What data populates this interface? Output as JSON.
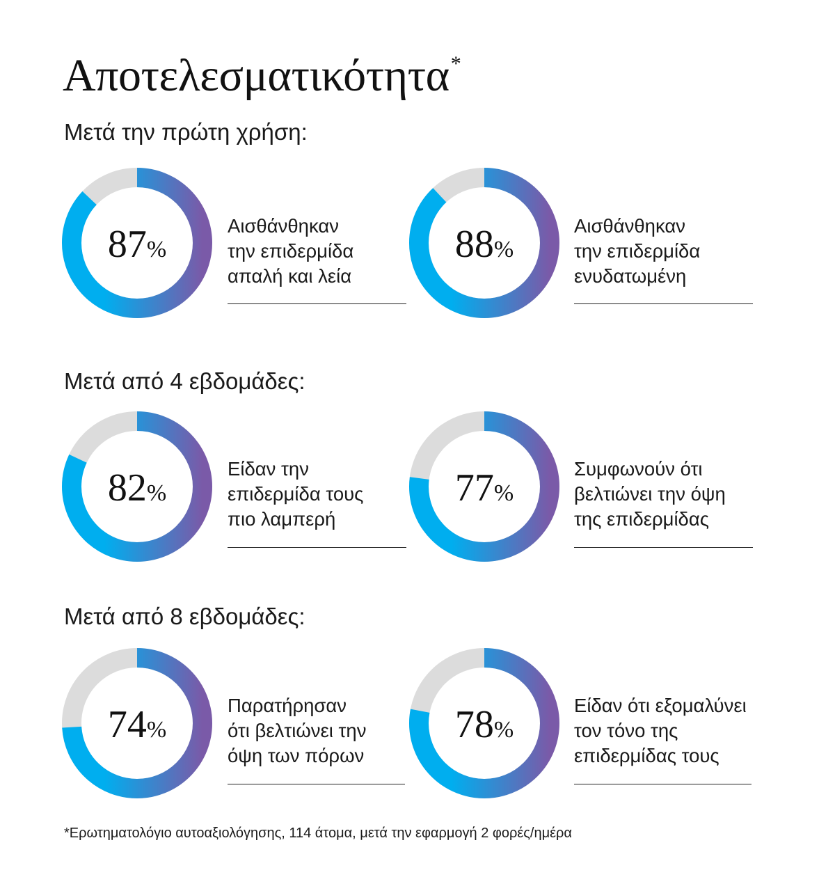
{
  "title": "Αποτελεσματικότητα",
  "title_mark": "*",
  "sections": [
    {
      "heading": "Μετά την πρώτη χρήση:",
      "items": [
        {
          "value": 87,
          "unit": "%",
          "lines": [
            "Αισθάνθηκαν",
            "την επιδερμίδα",
            "απαλή και λεία"
          ]
        },
        {
          "value": 88,
          "unit": "%",
          "lines": [
            "Αισθάνθηκαν",
            "την επιδερμίδα",
            "ενυδατωμένη"
          ]
        }
      ]
    },
    {
      "heading": "Μετά από 4 εβδομάδες:",
      "items": [
        {
          "value": 82,
          "unit": "%",
          "lines": [
            "Είδαν την",
            "επιδερμίδα τους",
            "πιο λαμπερή"
          ]
        },
        {
          "value": 77,
          "unit": "%",
          "lines": [
            "Συμφωνούν ότι",
            "βελτιώνει την όψη",
            "της επιδερμίδας"
          ]
        }
      ]
    },
    {
      "heading": "Μετά από 8 εβδομάδες:",
      "items": [
        {
          "value": 74,
          "unit": "%",
          "lines": [
            "Παρατήρησαν",
            "ότι βελτιώνει την",
            "όψη των πόρων"
          ]
        },
        {
          "value": 78,
          "unit": "%",
          "lines": [
            "Είδαν ότι εξομαλύνει",
            "τον τόνο της",
            "επιδερμίδας τους"
          ]
        }
      ]
    }
  ],
  "footnote": "*Ερωτηματολόγιο αυτοαξιολόγησης, 114 άτομα, μετά την εφαρμογή 2 φορές/ημέρα",
  "chart_data": {
    "type": "pie",
    "variant": "donut",
    "categories": [
      "Αισθάνθηκαν την επιδερμίδα απαλή και λεία",
      "Αισθάνθηκαν την επιδερμίδα ενυδατωμένη",
      "Είδαν την επιδερμίδα τους πιο λαμπερή",
      "Συμφωνούν ότι βελτιώνει την όψη της επιδερμίδας",
      "Παρατήρησαν ότι βελτιώνει την όψη των πόρων",
      "Είδαν ότι εξομαλύνει τον τόνο της επιδερμίδας τους"
    ],
    "values": [
      87,
      88,
      82,
      77,
      74,
      78
    ],
    "unit": "%",
    "max": 100,
    "colors": {
      "fill_top": "#00aeef",
      "fill_bottom": "#7a5aa8",
      "track": "#dcdcdc"
    }
  }
}
